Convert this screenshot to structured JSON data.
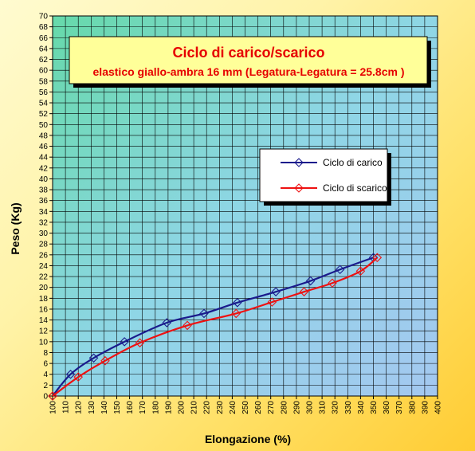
{
  "chart_data": {
    "type": "line",
    "title": "Ciclo di carico/scarico",
    "subtitle": "elastico giallo-ambra 16 mm (Legatura-Legatura = 25.8cm )",
    "xlabel": "Elongazione (%)",
    "ylabel": "Peso (Kg)",
    "xlim": [
      100,
      400
    ],
    "ylim": [
      0,
      70
    ],
    "x_ticks": [
      100,
      110,
      120,
      130,
      140,
      150,
      160,
      170,
      180,
      190,
      200,
      210,
      220,
      230,
      240,
      250,
      260,
      270,
      280,
      290,
      300,
      310,
      320,
      330,
      340,
      350,
      360,
      370,
      380,
      390,
      400
    ],
    "y_ticks": [
      0,
      2,
      4,
      6,
      8,
      10,
      12,
      14,
      16,
      18,
      20,
      22,
      24,
      26,
      28,
      30,
      32,
      34,
      36,
      38,
      40,
      42,
      44,
      46,
      48,
      50,
      52,
      54,
      56,
      58,
      60,
      62,
      64,
      66,
      68,
      70
    ],
    "grid": true,
    "legend_position": "right",
    "series": [
      {
        "name": "Ciclo di carico",
        "color": "#1a1a8c",
        "x": [
          100,
          114,
          132,
          156,
          189,
          218,
          244,
          274,
          301,
          324,
          350
        ],
        "y": [
          0,
          4,
          7,
          10,
          13.5,
          15.2,
          17.2,
          19.2,
          21.2,
          23.3,
          25.5
        ]
      },
      {
        "name": "Ciclo di scarico",
        "color": "#ee1111",
        "x": [
          100,
          120,
          141,
          168,
          205,
          243,
          271,
          296,
          318,
          340,
          353
        ],
        "y": [
          0,
          3.5,
          6.5,
          9.8,
          13,
          15.2,
          17.3,
          19.2,
          20.8,
          23,
          25.5
        ]
      }
    ]
  }
}
